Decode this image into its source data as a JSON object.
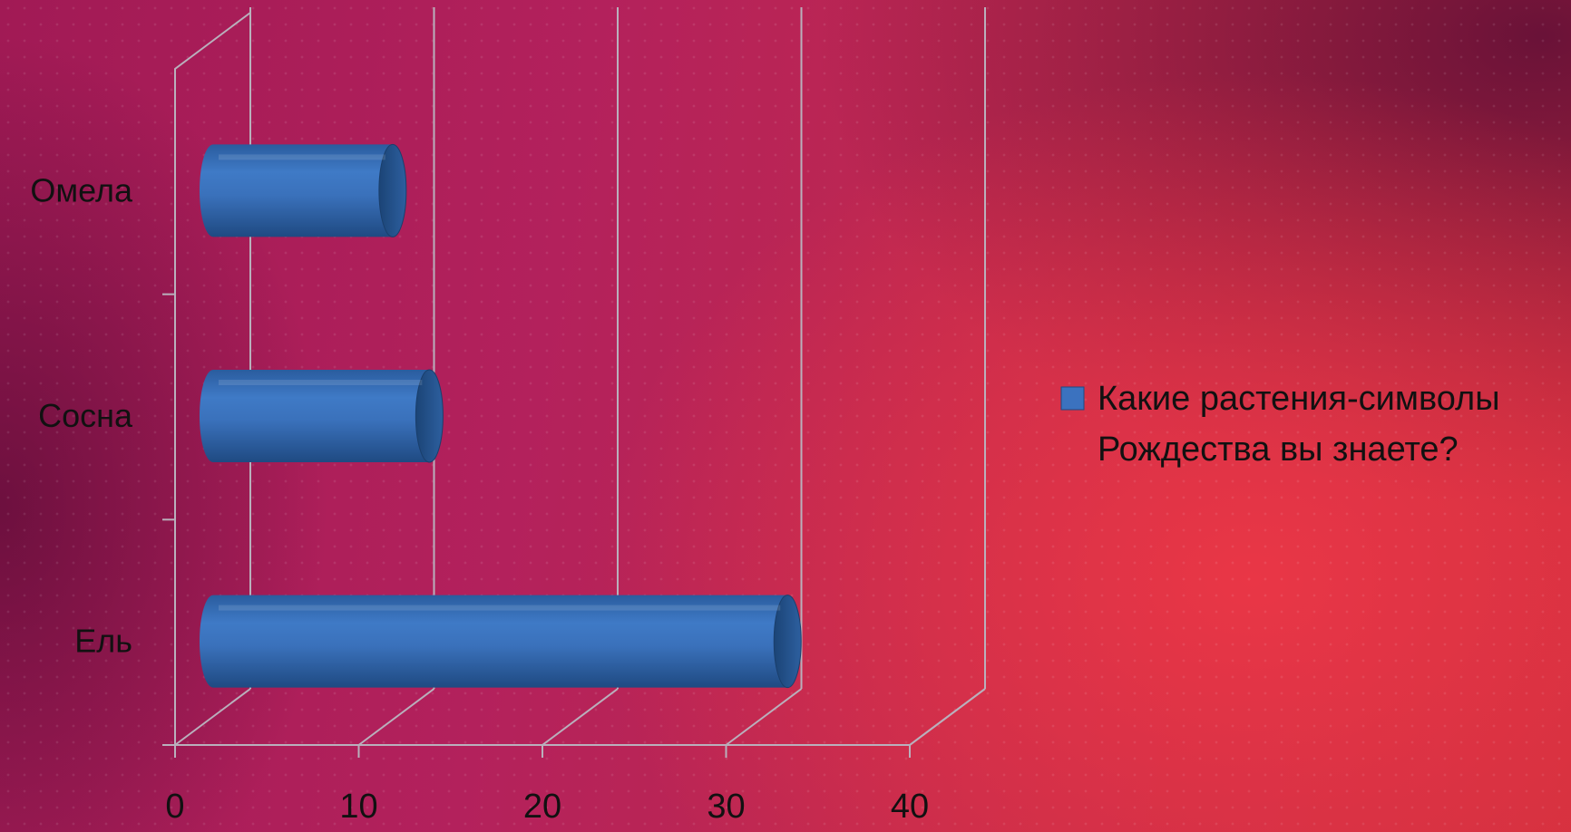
{
  "chart_data": {
    "type": "bar",
    "orientation": "horizontal",
    "style": "3d-cylinder",
    "categories": [
      "Ель",
      "Сосна",
      "Омела"
    ],
    "series": [
      {
        "name": "Какие растения-символы Рождества вы знаете?",
        "legend_lines": [
          "Какие растения-символы",
          "Рождества вы знаете?"
        ],
        "color": "#3b72bf",
        "values": [
          33,
          13.5,
          11.5
        ]
      }
    ],
    "x_ticks": [
      "0",
      "10",
      "20",
      "30",
      "40"
    ],
    "xlim": [
      0,
      40
    ],
    "grid": true,
    "legend_position": "right"
  }
}
